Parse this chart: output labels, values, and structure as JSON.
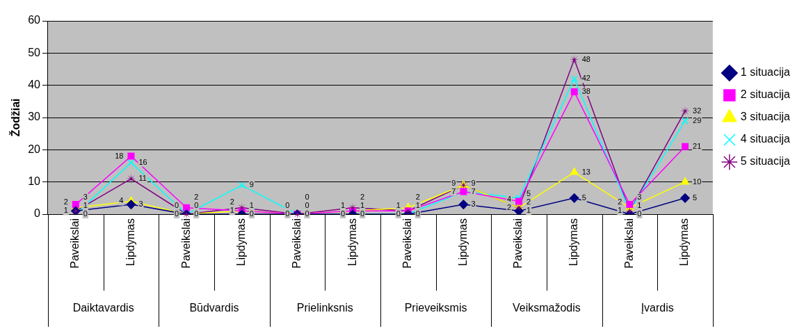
{
  "chart_data": {
    "type": "line",
    "ylabel": "Žodžiai",
    "categories": [
      "Paveikslai",
      "Lipdymas",
      "Paveikslai",
      "Lipdymas",
      "Paveikslai",
      "Lipdymas",
      "Paveikslai",
      "Lipdymas",
      "Paveikslai",
      "Lipdymas",
      "Paveikslai",
      "Lipdymas"
    ],
    "annotations": [
      "Daiktavardis",
      "Būdvardis",
      "Prielinksnis",
      "Prieveiksmis",
      "Veiksmažodis",
      "Įvardis"
    ],
    "series": [
      {
        "name": "1 situacija",
        "color": "#000080",
        "marker": "diamond",
        "values": [
          1,
          3,
          0,
          0,
          0,
          0,
          0,
          3,
          1,
          5,
          0,
          5
        ]
      },
      {
        "name": "2 situacija",
        "color": "#ff00ff",
        "marker": "square",
        "values": [
          3,
          18,
          2,
          1,
          0,
          1,
          1,
          7,
          4,
          38,
          3,
          21
        ]
      },
      {
        "name": "3 situacija",
        "color": "#ffff00",
        "marker": "triangle",
        "values": [
          2,
          4,
          0,
          1,
          0,
          1,
          2,
          9,
          2,
          13,
          2,
          10
        ]
      },
      {
        "name": "4 situacija",
        "color": "#00ffff",
        "marker": "cross",
        "values": [
          0,
          16,
          0,
          9,
          0,
          0,
          0,
          7,
          5,
          42,
          1,
          29
        ]
      },
      {
        "name": "5 situacija",
        "color": "#800080",
        "marker": "star",
        "values": [
          1,
          11,
          0,
          2,
          0,
          2,
          1,
          9,
          2,
          48,
          1,
          32
        ]
      }
    ],
    "ylim": [
      0,
      60
    ],
    "yticks": [
      0,
      10,
      20,
      30,
      40,
      50,
      60
    ],
    "grid": "y",
    "legend": "right",
    "data_labels": true
  }
}
